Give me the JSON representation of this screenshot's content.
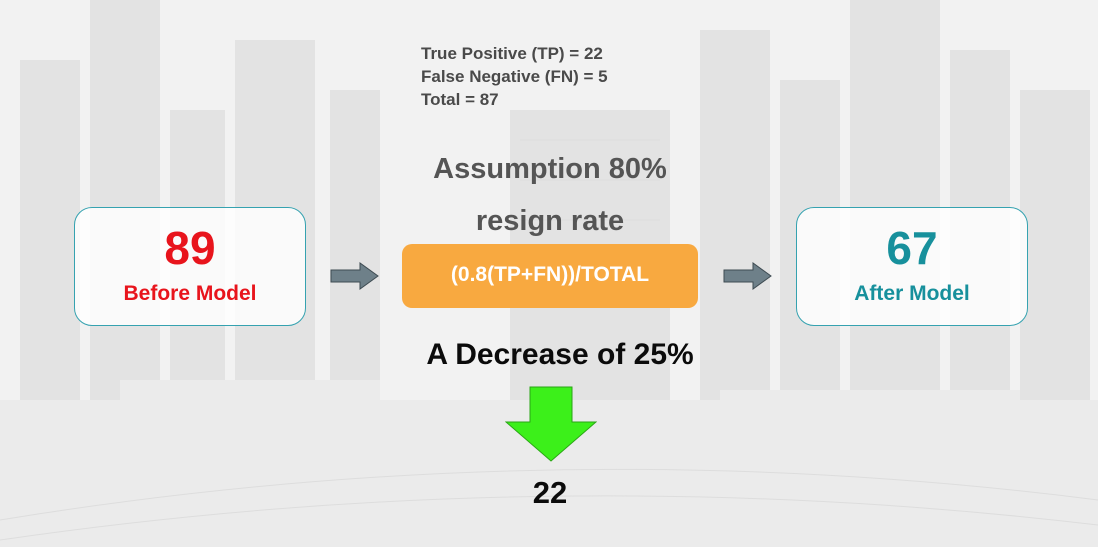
{
  "stats": {
    "tp": "True Positive (TP) = 22",
    "fn": "False Negative (FN) = 5",
    "total": "Total = 87"
  },
  "assumption": {
    "line1": "Assumption 80%",
    "line2": "resign rate"
  },
  "before_card": {
    "value": "89",
    "label": "Before Model"
  },
  "after_card": {
    "value": "67",
    "label": "After Model"
  },
  "formula": "(0.8(TP+FN))/TOTAL",
  "decrease_text": "A Decrease of 25%",
  "result": "22",
  "colors": {
    "before": "#e8141c",
    "after": "#17909c",
    "card_border": "#35a2b0",
    "formula_bg": "#f8a940",
    "arrow_right": "#6e8089",
    "arrow_down": "#3cf01a"
  },
  "icons": {
    "right_arrow": "arrow-right-icon",
    "down_arrow": "arrow-down-icon"
  }
}
